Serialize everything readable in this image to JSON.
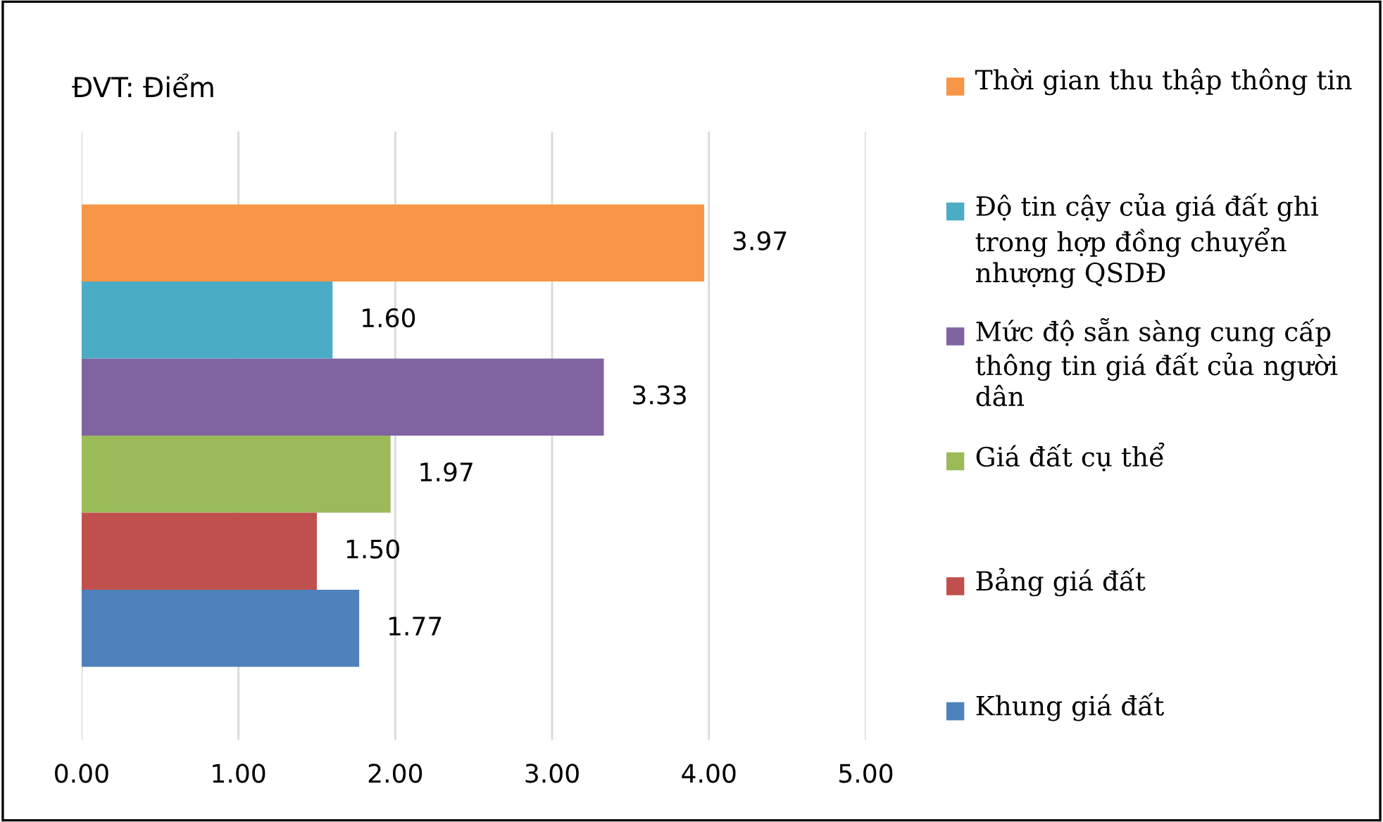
{
  "chart_data": {
    "type": "bar",
    "orientation": "horizontal",
    "categories": [
      null
    ],
    "series": [
      {
        "name": "Thời gian thu thập thông tin",
        "color": "#f79646",
        "values": [
          3.97
        ],
        "value_labels": [
          "3.97"
        ]
      },
      {
        "name": "Độ tin cậy của giá đất ghi trong hợp đồng chuyển nhượng QSDĐ",
        "color": "#4bacc6",
        "values": [
          1.6
        ],
        "value_labels": [
          "1.60"
        ]
      },
      {
        "name": "Mức độ sẵn sàng cung cấp thông tin giá đất của người dân",
        "color": "#8064a2",
        "values": [
          3.33
        ],
        "value_labels": [
          "3.33"
        ]
      },
      {
        "name": "Giá đất cụ thể",
        "color": "#9bbb59",
        "values": [
          1.97
        ],
        "value_labels": [
          "1.97"
        ]
      },
      {
        "name": "Bảng giá đất",
        "color": "#c0504d",
        "values": [
          1.5
        ],
        "value_labels": [
          "1.50"
        ]
      },
      {
        "name": "Khung giá đất",
        "color": "#4f81bd",
        "values": [
          1.77
        ],
        "value_labels": [
          "1.77"
        ]
      }
    ],
    "xlim": [
      0,
      5
    ],
    "xticks": [
      {
        "value": 0,
        "label": "0.00"
      },
      {
        "value": 1,
        "label": "1.00"
      },
      {
        "value": 2,
        "label": "2.00"
      },
      {
        "value": 3,
        "label": "3.00"
      },
      {
        "value": 4,
        "label": "4.00"
      },
      {
        "value": 5,
        "label": "5.00"
      }
    ],
    "grid": "x",
    "legend": "right",
    "tick_labels": "x",
    "annotations": [
      "ĐVT: Điểm"
    ]
  }
}
